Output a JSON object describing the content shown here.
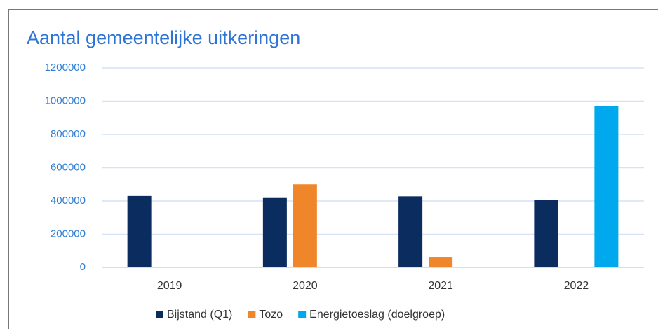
{
  "chart_data": {
    "type": "bar",
    "title": "Aantal gemeentelijke uitkeringen",
    "categories": [
      "2019",
      "2020",
      "2021",
      "2022"
    ],
    "series": [
      {
        "name": "Bijstand (Q1)",
        "color": "#0b2c5e",
        "values": [
          430000,
          418000,
          428000,
          405000
        ]
      },
      {
        "name": "Tozo",
        "color": "#f0862a",
        "values": [
          null,
          500000,
          63000,
          null
        ]
      },
      {
        "name": "Energietoeslag (doelgroep)",
        "color": "#00a8ee",
        "values": [
          null,
          null,
          null,
          970000
        ]
      }
    ],
    "ylim": [
      0,
      1200000
    ],
    "yticks": [
      0,
      200000,
      400000,
      600000,
      800000,
      1000000,
      1200000
    ],
    "grid": true,
    "legend": "bottom"
  }
}
